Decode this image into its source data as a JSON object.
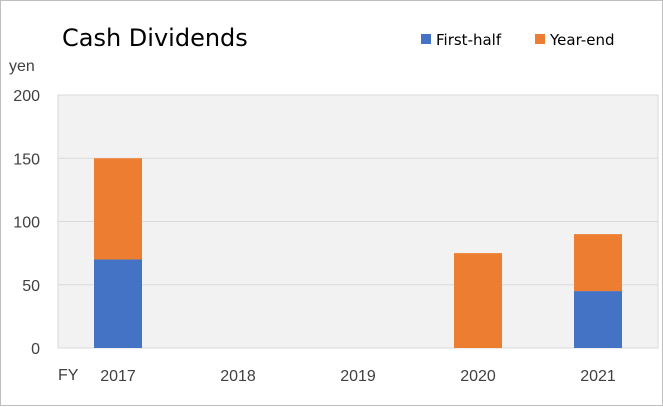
{
  "chart_data": {
    "type": "bar",
    "stacked": true,
    "title": "Cash Dividends",
    "ylabel": "yen",
    "xlabel": "FY",
    "categories": [
      "2017",
      "2018",
      "2019",
      "2020",
      "2021"
    ],
    "series": [
      {
        "name": "First-half",
        "color": "#4472c4",
        "values": [
          70,
          0,
          0,
          0,
          45
        ]
      },
      {
        "name": "Year-end",
        "color": "#ed7d31",
        "values": [
          80,
          0,
          0,
          75,
          45
        ]
      }
    ],
    "ylim": [
      0,
      200
    ],
    "yticks": [
      "0",
      "50",
      "100",
      "150",
      "200"
    ],
    "grid": true,
    "legend_position": "top-right",
    "plot_background": "#f2f2f2",
    "grid_color": "#d9d9d9"
  }
}
